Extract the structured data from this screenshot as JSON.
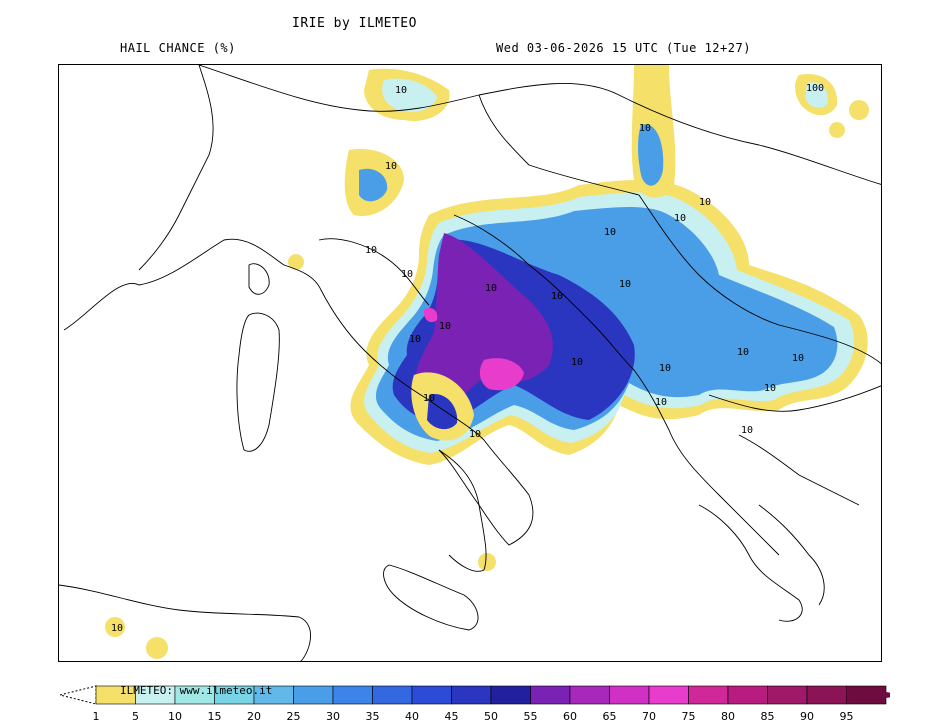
{
  "header": {
    "title": "IRIE by ILMETEO",
    "subtitle": "HAIL CHANCE (%)",
    "valid_time": "Wed 03-06-2026 15 UTC (Tue 12+27)"
  },
  "map": {
    "contour_label": "10",
    "contour_label_alt": "100"
  },
  "legend": {
    "credit": "ILMETEO: www.ilmeteo.it",
    "ticks": [
      "1",
      "5",
      "10",
      "15",
      "20",
      "25",
      "30",
      "35",
      "40",
      "45",
      "50",
      "55",
      "60",
      "65",
      "70",
      "75",
      "80",
      "85",
      "90",
      "95"
    ],
    "colors": [
      "#f5e06a",
      "#c8f0f0",
      "#9fe8e6",
      "#78d4e6",
      "#62b8e8",
      "#4a9ee8",
      "#3c84ea",
      "#3468e0",
      "#2c4cd8",
      "#2a36c0",
      "#22209e",
      "#7a22b4",
      "#a828bc",
      "#d030c4",
      "#e83ccc",
      "#d02898",
      "#b81c80",
      "#a01868",
      "#8a1456",
      "#6e0c40"
    ]
  }
}
